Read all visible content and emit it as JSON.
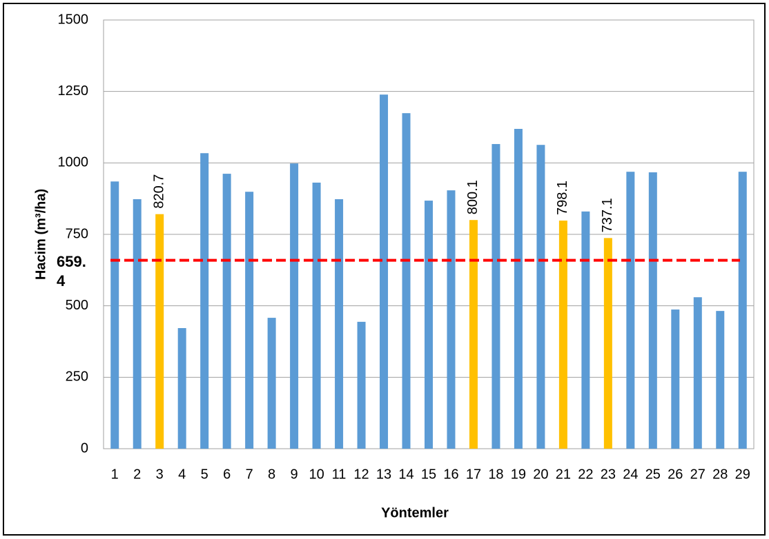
{
  "chart_data": {
    "type": "bar",
    "categories": [
      "1",
      "2",
      "3",
      "4",
      "5",
      "6",
      "7",
      "8",
      "9",
      "10",
      "11",
      "12",
      "13",
      "14",
      "15",
      "16",
      "17",
      "18",
      "19",
      "20",
      "21",
      "22",
      "23",
      "24",
      "25",
      "26",
      "27",
      "28",
      "29"
    ],
    "values": [
      935,
      873,
      820.7,
      422,
      1034,
      962,
      899,
      458,
      998,
      931,
      873,
      444,
      1239,
      1174,
      868,
      904,
      800.1,
      1066,
      1119,
      1063,
      798.1,
      830,
      737.1,
      969,
      967,
      487,
      530,
      482,
      969
    ],
    "value_labels": [
      null,
      null,
      "820.7",
      null,
      null,
      null,
      null,
      null,
      null,
      null,
      null,
      null,
      null,
      null,
      null,
      null,
      "800.1",
      null,
      null,
      null,
      "798.1",
      null,
      "737.1",
      null,
      null,
      null,
      null,
      null,
      null
    ],
    "colors": [
      "#5b9bd5",
      "#5b9bd5",
      "#ffc000",
      "#5b9bd5",
      "#5b9bd5",
      "#5b9bd5",
      "#5b9bd5",
      "#5b9bd5",
      "#5b9bd5",
      "#5b9bd5",
      "#5b9bd5",
      "#5b9bd5",
      "#5b9bd5",
      "#5b9bd5",
      "#5b9bd5",
      "#5b9bd5",
      "#ffc000",
      "#5b9bd5",
      "#5b9bd5",
      "#5b9bd5",
      "#ffc000",
      "#5b9bd5",
      "#ffc000",
      "#5b9bd5",
      "#5b9bd5",
      "#5b9bd5",
      "#5b9bd5",
      "#5b9bd5",
      "#5b9bd5"
    ],
    "ylim": [
      0,
      1500
    ],
    "yticks": [
      0,
      250,
      500,
      750,
      1000,
      1250,
      1500
    ],
    "grid": true,
    "y_label": "Hacim (m³/ha)",
    "x_label": "Yöntemler",
    "reference_line": {
      "value": 659.4,
      "color": "#ff0000"
    }
  }
}
